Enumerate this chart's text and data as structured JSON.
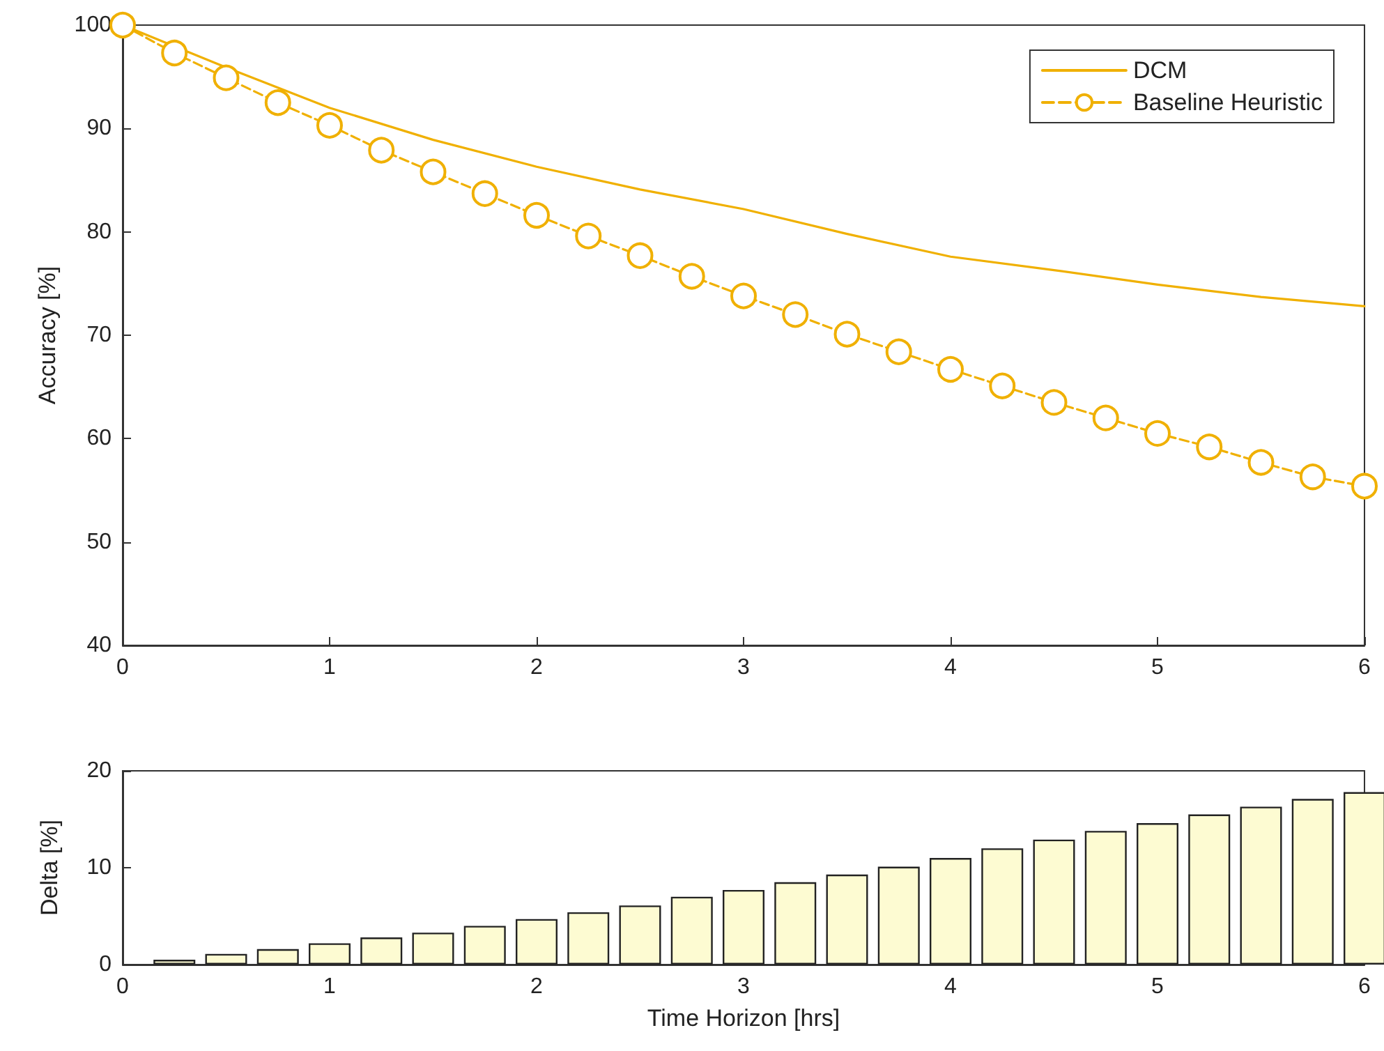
{
  "chart_data": [
    {
      "type": "line",
      "ylabel": "Accuracy [%]",
      "xlim": [
        0,
        6
      ],
      "xticks": [
        0,
        1,
        2,
        3,
        4,
        5,
        6
      ],
      "ylim": [
        40,
        100
      ],
      "yticks": [
        40,
        50,
        60,
        70,
        80,
        90,
        100
      ],
      "grid": false,
      "legend": "top right",
      "series": [
        {
          "name": "DCM",
          "color": "#f0b000",
          "marker": "none",
          "line_style": "solid",
          "x": [
            0,
            0.5,
            1,
            1.5,
            2,
            2.5,
            3,
            3.5,
            4,
            4.5,
            5,
            5.5,
            6
          ],
          "values": [
            100,
            95.9,
            92.0,
            88.9,
            86.3,
            84.1,
            82.2,
            79.8,
            77.6,
            76.3,
            74.9,
            73.7,
            72.8
          ]
        },
        {
          "name": "Baseline Heuristic",
          "color": "#f0b000",
          "marker": "circle",
          "line_style": "dashed",
          "x": [
            0,
            0.25,
            0.5,
            0.75,
            1,
            1.25,
            1.5,
            1.75,
            2,
            2.25,
            2.5,
            2.75,
            3,
            3.25,
            3.5,
            3.75,
            4,
            4.25,
            4.5,
            4.75,
            5,
            5.25,
            5.5,
            5.75,
            6
          ],
          "values": [
            100,
            97.3,
            94.9,
            92.5,
            90.3,
            87.9,
            85.8,
            83.7,
            81.6,
            79.6,
            77.7,
            75.7,
            73.8,
            72.0,
            70.1,
            68.4,
            66.7,
            65.1,
            63.5,
            62.0,
            60.5,
            59.2,
            57.7,
            56.3,
            55.4
          ]
        }
      ]
    },
    {
      "type": "bar",
      "xlabel": "Time Horizon [hrs]",
      "ylabel": "Delta [%]",
      "xlim": [
        0,
        6
      ],
      "xticks": [
        0,
        1,
        2,
        3,
        4,
        5,
        6
      ],
      "ylim": [
        0,
        20
      ],
      "yticks": [
        0,
        10,
        20
      ],
      "grid": false,
      "legend": false,
      "color": "#fdfbd2",
      "x": [
        0.25,
        0.5,
        0.75,
        1,
        1.25,
        1.5,
        1.75,
        2,
        2.25,
        2.5,
        2.75,
        3,
        3.25,
        3.5,
        3.75,
        4,
        4.25,
        4.5,
        4.75,
        5,
        5.25,
        5.5,
        5.75,
        6
      ],
      "values": [
        0.5,
        1.1,
        1.6,
        2.2,
        2.8,
        3.3,
        4.0,
        4.7,
        5.4,
        6.1,
        7.0,
        7.7,
        8.5,
        9.3,
        10.1,
        11.0,
        12.0,
        12.9,
        13.8,
        14.6,
        15.5,
        16.3,
        17.1,
        17.8
      ]
    }
  ]
}
